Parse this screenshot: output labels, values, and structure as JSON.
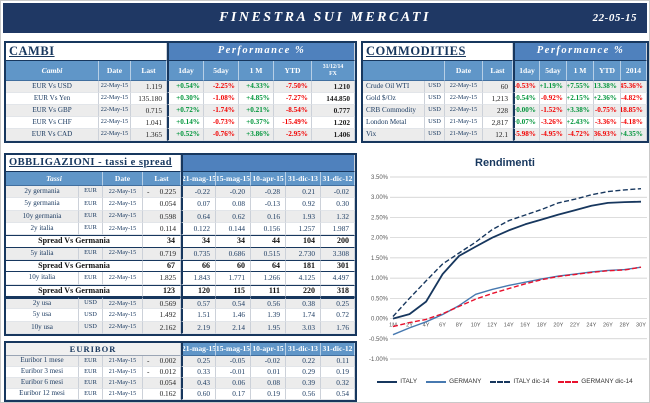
{
  "frame": {
    "title": "FINESTRA SUI MERCATI",
    "date": "22-05-15"
  },
  "colors": {
    "navy": "#1f3864",
    "band_blue": "#4f81bd",
    "header_blue": "#6096c8",
    "positive": "#00953b",
    "negative": "#f20000",
    "stripe": "#ececec"
  },
  "cambi": {
    "title": "CAMBI",
    "perf_header": "Performance %",
    "columns": [
      "Cambi",
      "Date",
      "Last",
      "1day",
      "5day",
      "1 M",
      "YTD",
      "31/12/14\nFX"
    ],
    "rows": [
      [
        "EUR Vs USD",
        "22-May-15",
        "1.119",
        "+0.54%",
        "-2.25%",
        "+4.33%",
        "-7.50%",
        "1.210"
      ],
      [
        "EUR Vs Yen",
        "22-May-15",
        "135.180",
        "+0.30%",
        "-1.08%",
        "+4.85%",
        "-7.27%",
        "144.850"
      ],
      [
        "EUR Vs GBP",
        "22-May-15",
        "0.715",
        "+0.72%",
        "-1.74%",
        "+0.21%",
        "-8.54%",
        "0.777"
      ],
      [
        "EUR Vs CHF",
        "22-May-15",
        "1.041",
        "+0.14%",
        "-0.73%",
        "+0.37%",
        "-15.49%",
        "1.202"
      ],
      [
        "EUR Vs CAD",
        "22-May-15",
        "1.365",
        "+0.52%",
        "-0.76%",
        "+3.86%",
        "-2.95%",
        "1.406"
      ]
    ]
  },
  "commodities": {
    "title": "COMMODITIES",
    "perf_header": "Performance %",
    "columns": [
      "Date",
      "Last",
      "1day",
      "5day",
      "1 M",
      "YTD",
      "2014"
    ],
    "rows": [
      [
        "Crude Oil WTI",
        "USD",
        "22-May-15",
        "60",
        "-0.53%",
        "+1.19%",
        "+7.55%",
        "+13.38%",
        "-45.36%"
      ],
      [
        "Gold $/Oz",
        "USD",
        "22-May-15",
        "1,213",
        "+0.54%",
        "-0.92%",
        "+2.15%",
        "+2.36%",
        "-4.82%"
      ],
      [
        "CRB Commodity",
        "USD",
        "22-May-15",
        "228",
        "+0.00%",
        "-1.52%",
        "+3.38%",
        "-0.75%",
        "-18.85%"
      ],
      [
        "London Metal",
        "USD",
        "21-May-15",
        "2,817",
        "+0.07%",
        "-3.26%",
        "+2.43%",
        "-3.36%",
        "-4.18%"
      ],
      [
        "Vix",
        "USD",
        "21-May-15",
        "12.1",
        "-5.98%",
        "-4.95%",
        "-4.72%",
        "-36.93%",
        "+4.35%"
      ]
    ]
  },
  "bonds": {
    "title": "OBBLIGAZIONI - tassi e spread",
    "header": {
      "tassi": "Tassi",
      "date": "Date",
      "last": "Last"
    },
    "date_columns": [
      "21-mag-15",
      "15-mag-15",
      "10-apr-15",
      "31-dic-13",
      "31-dic-12"
    ],
    "rows": [
      {
        "type": "bond",
        "cells": [
          "2y germania",
          "EUR",
          "22-May-15",
          "- 0.225",
          "-0.22",
          "-0.20",
          "-0.28",
          "0.21",
          "-0.02"
        ]
      },
      {
        "type": "bond",
        "cells": [
          "5y germania",
          "EUR",
          "22-May-15",
          "0.054",
          "0.07",
          "0.08",
          "-0.13",
          "0.92",
          "0.30"
        ]
      },
      {
        "type": "bond",
        "cells": [
          "10y germania",
          "EUR",
          "22-May-15",
          "0.598",
          "0.64",
          "0.62",
          "0.16",
          "1.93",
          "1.32"
        ]
      },
      {
        "type": "bond",
        "cells": [
          "2y italia",
          "EUR",
          "22-May-15",
          "0.114",
          "0.122",
          "0.144",
          "0.156",
          "1.257",
          "1.987"
        ]
      },
      {
        "type": "spread",
        "label": "Spread Vs Germania",
        "values": [
          "34",
          "34",
          "34",
          "44",
          "104",
          "200"
        ]
      },
      {
        "type": "bond",
        "cells": [
          "5y italia",
          "EUR",
          "22-May-15",
          "0.719",
          "0.735",
          "0.686",
          "0.515",
          "2.730",
          "3.308"
        ]
      },
      {
        "type": "spread",
        "label": "Spread Vs Germania",
        "values": [
          "67",
          "66",
          "60",
          "64",
          "181",
          "301"
        ]
      },
      {
        "type": "bond",
        "cells": [
          "10y italia",
          "EUR",
          "22-May-15",
          "1.825",
          "1.843",
          "1.771",
          "1.266",
          "4.125",
          "4.497"
        ]
      },
      {
        "type": "spread",
        "label": "Spread Vs Germania",
        "values": [
          "123",
          "120",
          "115",
          "111",
          "220",
          "318"
        ]
      },
      {
        "type": "bond",
        "cells": [
          "2y usa",
          "USD",
          "22-May-15",
          "0.569",
          "0.57",
          "0.54",
          "0.56",
          "0.38",
          "0.25"
        ]
      },
      {
        "type": "bond",
        "cells": [
          "5y usa",
          "USD",
          "22-May-15",
          "1.492",
          "1.51",
          "1.46",
          "1.39",
          "1.74",
          "0.72"
        ]
      },
      {
        "type": "bond",
        "cells": [
          "10y usa",
          "USD",
          "22-May-15",
          "2.162",
          "2.19",
          "2.14",
          "1.95",
          "3.03",
          "1.76"
        ]
      }
    ]
  },
  "euribor": {
    "title": "EURIBOR",
    "date_columns": [
      "21-mag-15",
      "15-mag-15",
      "10-apr-15",
      "31-dic-13",
      "31-dic-12"
    ],
    "rows": [
      [
        "Euribor 1 mese",
        "EUR",
        "21-May-15",
        "- 0.002",
        "0.25",
        "-0.05",
        "-0.02",
        "0.22",
        "0.11"
      ],
      [
        "Euribor 3 mesi",
        "EUR",
        "21-May-15",
        "- 0.012",
        "0.33",
        "-0.01",
        "0.01",
        "0.29",
        "0.19"
      ],
      [
        "Euribor 6 mesi",
        "EUR",
        "21-May-15",
        "0.054",
        "0.43",
        "0.06",
        "0.08",
        "0.39",
        "0.32"
      ],
      [
        "Euribor 12 mesi",
        "EUR",
        "21-May-15",
        "0.162",
        "0.60",
        "0.17",
        "0.19",
        "0.56",
        "0.54"
      ]
    ]
  },
  "chart_data": {
    "type": "line",
    "title": "Rendimenti",
    "x_labels": [
      "1M",
      "2Y",
      "4Y",
      "6Y",
      "8Y",
      "10Y",
      "12Y",
      "14Y",
      "16Y",
      "18Y",
      "20Y",
      "22Y",
      "24Y",
      "26Y",
      "28Y",
      "30Y"
    ],
    "ylim": [
      -1.0,
      3.5
    ],
    "ytick_step": 0.5,
    "grid": true,
    "legend_position": "bottom",
    "series": [
      {
        "name": "ITALY",
        "color": "#17375e",
        "dash": false,
        "values": [
          0.0,
          0.11,
          0.42,
          1.1,
          1.55,
          1.78,
          2.0,
          2.18,
          2.33,
          2.45,
          2.57,
          2.68,
          2.79,
          2.86,
          2.88,
          2.89
        ]
      },
      {
        "name": "GERMANY",
        "color": "#4779b0",
        "dash": false,
        "values": [
          -0.4,
          -0.23,
          -0.08,
          0.1,
          0.32,
          0.6,
          0.72,
          0.82,
          0.9,
          0.98,
          1.05,
          1.1,
          1.15,
          1.19,
          1.21,
          1.27
        ]
      },
      {
        "name": "ITALY dic-14",
        "color": "#17375e",
        "dash": true,
        "values": [
          0.05,
          0.5,
          0.93,
          1.35,
          1.62,
          1.89,
          2.2,
          2.42,
          2.56,
          2.7,
          2.86,
          2.95,
          3.06,
          3.14,
          3.18,
          3.21
        ]
      },
      {
        "name": "GERMANY dic-14",
        "color": "#e8112d",
        "dash": true,
        "values": [
          -0.2,
          -0.1,
          -0.02,
          0.12,
          0.3,
          0.48,
          0.62,
          0.74,
          0.86,
          0.96,
          1.04,
          1.09,
          1.14,
          1.18,
          1.2,
          1.27
        ]
      }
    ]
  }
}
